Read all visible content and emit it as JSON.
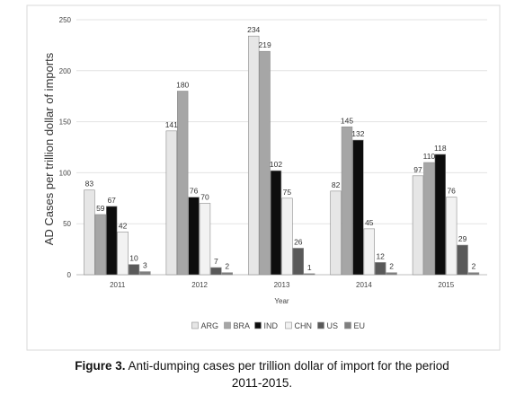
{
  "caption": {
    "label": "Figure 3.",
    "text": "Anti-dumping cases per trillion dollar of import for the period",
    "text_line2": "2011-2015."
  },
  "chart_data": {
    "type": "bar",
    "title": "",
    "xlabel": "Year",
    "ylabel": "AD Cases per trillion dollar of imports",
    "ylim": [
      0,
      250
    ],
    "yticks": [
      0,
      50,
      100,
      150,
      200,
      250
    ],
    "grid": true,
    "legend_position": "bottom",
    "categories": [
      "2011",
      "2012",
      "2013",
      "2014",
      "2015"
    ],
    "series": [
      {
        "name": "ARG",
        "color": "#e6e6e6",
        "values": [
          83,
          141,
          234,
          82,
          97
        ]
      },
      {
        "name": "BRA",
        "color": "#a6a6a6",
        "values": [
          59,
          180,
          219,
          145,
          110
        ]
      },
      {
        "name": "IND",
        "color": "#0d0d0d",
        "values": [
          67,
          76,
          102,
          132,
          118
        ]
      },
      {
        "name": "CHN",
        "color": "#f2f2f2",
        "values": [
          42,
          70,
          75,
          45,
          76
        ]
      },
      {
        "name": "US",
        "color": "#595959",
        "values": [
          10,
          7,
          26,
          12,
          29
        ]
      },
      {
        "name": "EU",
        "color": "#7f7f7f",
        "values": [
          3,
          2,
          1,
          2,
          2
        ]
      }
    ]
  }
}
